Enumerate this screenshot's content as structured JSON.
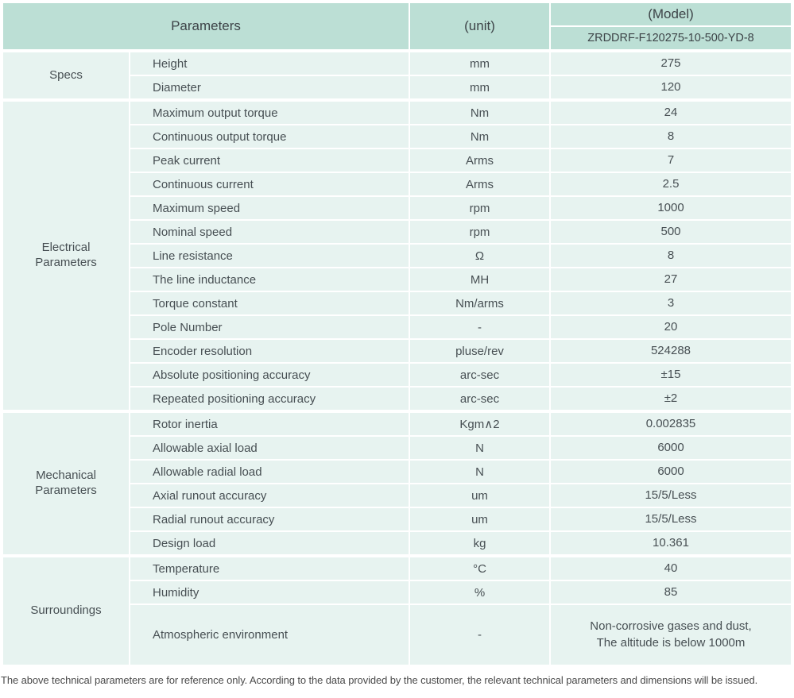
{
  "colors": {
    "header_bg": "#bcdfd5",
    "row_bg": "#e7f3f0"
  },
  "header": {
    "parameters_label": "Parameters",
    "unit_label": "(unit)",
    "model_label": "(Model)",
    "model_value": "ZRDDRF-F120275-10-500-YD-8"
  },
  "sections": [
    {
      "group": "Specs",
      "rows": [
        {
          "param": "Height",
          "unit": "mm",
          "value": "275"
        },
        {
          "param": "Diameter",
          "unit": "mm",
          "value": "120"
        }
      ]
    },
    {
      "group": "Electrical\nParameters",
      "rows": [
        {
          "param": "Maximum output torque",
          "unit": "Nm",
          "value": "24"
        },
        {
          "param": "Continuous output torque",
          "unit": "Nm",
          "value": "8"
        },
        {
          "param": "Peak current",
          "unit": "Arms",
          "value": "7"
        },
        {
          "param": "Continuous current",
          "unit": "Arms",
          "value": "2.5"
        },
        {
          "param": "Maximum speed",
          "unit": "rpm",
          "value": "1000"
        },
        {
          "param": "Nominal speed",
          "unit": "rpm",
          "value": "500"
        },
        {
          "param": "Line resistance",
          "unit": "Ω",
          "value": "8"
        },
        {
          "param": "The line inductance",
          "unit": "MH",
          "value": "27"
        },
        {
          "param": "Torque constant",
          "unit": "Nm/arms",
          "value": "3"
        },
        {
          "param": "Pole Number",
          "unit": "-",
          "value": "20"
        },
        {
          "param": "Encoder resolution",
          "unit": "pluse/rev",
          "value": "524288"
        },
        {
          "param": "Absolute positioning accuracy",
          "unit": "arc-sec",
          "value": "±15"
        },
        {
          "param": "Repeated positioning accuracy",
          "unit": "arc-sec",
          "value": "±2"
        }
      ]
    },
    {
      "group": "Mechanical\nParameters",
      "rows": [
        {
          "param": "Rotor inertia",
          "unit": "Kgm∧2",
          "value": "0.002835"
        },
        {
          "param": "Allowable axial load",
          "unit": "N",
          "value": "6000"
        },
        {
          "param": "Allowable radial load",
          "unit": "N",
          "value": "6000"
        },
        {
          "param": "Axial runout accuracy",
          "unit": "um",
          "value": "15/5/Less"
        },
        {
          "param": "Radial runout accuracy",
          "unit": "um",
          "value": "15/5/Less"
        },
        {
          "param": "Design load",
          "unit": "kg",
          "value": "10.361"
        }
      ]
    },
    {
      "group": "Surroundings",
      "rows": [
        {
          "param": "Temperature",
          "unit": "°C",
          "value": "40"
        },
        {
          "param": "Humidity",
          "unit": "%",
          "value": "85"
        },
        {
          "param": "Atmospheric environment",
          "unit": "-",
          "value": "Non-corrosive gases and dust,\nThe altitude is below 1000m"
        }
      ]
    }
  ],
  "footer": {
    "note": "The above technical parameters are for reference only. According to the data provided by the customer, the relevant technical parameters and dimensions will be issued."
  }
}
